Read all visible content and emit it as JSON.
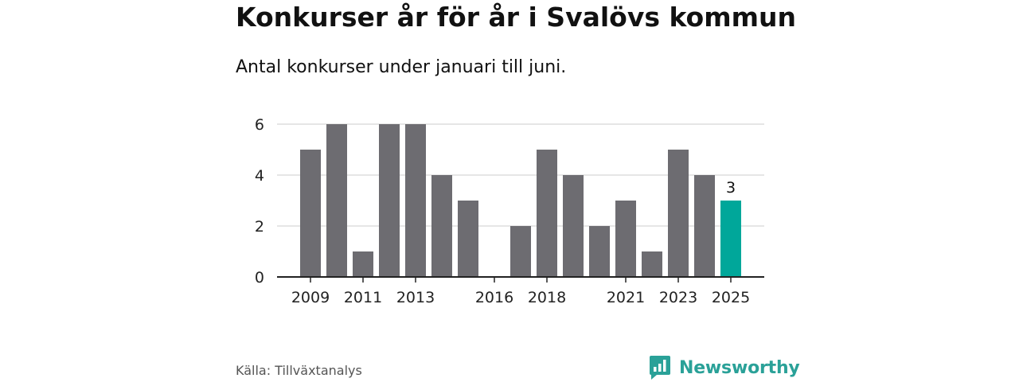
{
  "title": "Konkurser år för år i Svalövs kommun",
  "subtitle": "Antal konkurser under januari till juni.",
  "source": "Källa: Tillväxtanalys",
  "brand": {
    "name": "Newsworthy",
    "color": "#2aa198",
    "icon": "newsworthy-logo-icon"
  },
  "colors": {
    "bar": "#6d6c71",
    "highlight": "#00a79a",
    "grid": "#dddddd",
    "axis": "#222222"
  },
  "chart_data": {
    "type": "bar",
    "categories": [
      "2009",
      "2010",
      "2011",
      "2012",
      "2013",
      "2014",
      "2015",
      "2016",
      "2017",
      "2018",
      "2019",
      "2020",
      "2021",
      "2022",
      "2023",
      "2024",
      "2025"
    ],
    "values": [
      5,
      6,
      1,
      6,
      6,
      4,
      3,
      0,
      2,
      5,
      4,
      2,
      3,
      1,
      5,
      4,
      3
    ],
    "tick_labels": [
      "2009",
      "2011",
      "2013",
      "2016",
      "2018",
      "2021",
      "2023",
      "2025"
    ],
    "highlight": {
      "category": "2025",
      "label": "3"
    },
    "yticks": [
      0,
      2,
      4,
      6
    ],
    "ylim": [
      0,
      6
    ],
    "grid": true,
    "xlabel": "",
    "ylabel": ""
  }
}
